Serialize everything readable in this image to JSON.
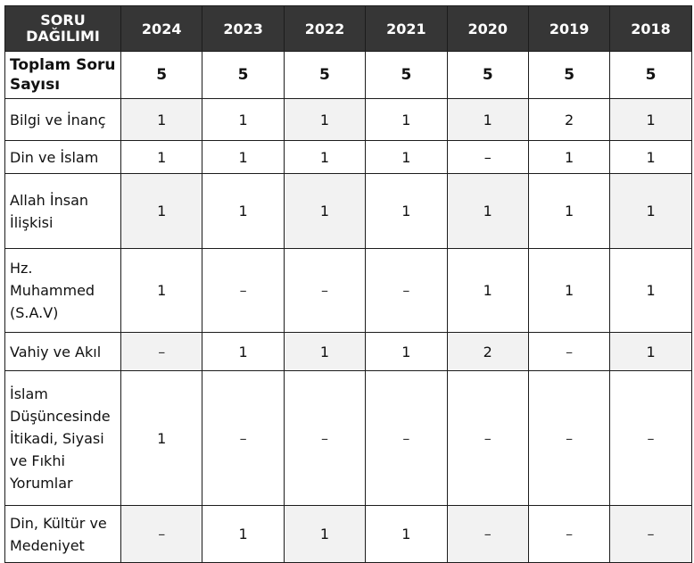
{
  "header": {
    "topic": "SORU DAĞILIMI",
    "years": [
      "2024",
      "2023",
      "2022",
      "2021",
      "2020",
      "2019",
      "2018"
    ]
  },
  "total": {
    "label": "Toplam Soru Sayısı",
    "values": [
      "5",
      "5",
      "5",
      "5",
      "5",
      "5",
      "5"
    ]
  },
  "rows": [
    {
      "topic": "Bilgi ve İnanç",
      "values": [
        "1",
        "1",
        "1",
        "1",
        "1",
        "2",
        "1"
      ]
    },
    {
      "topic": "Din ve İslam",
      "values": [
        "1",
        "1",
        "1",
        "1",
        "–",
        "1",
        "1"
      ]
    },
    {
      "topic": "Allah İnsan İlişkisi",
      "values": [
        "1",
        "1",
        "1",
        "1",
        "1",
        "1",
        "1"
      ]
    },
    {
      "topic": "Hz. Muhammed (S.A.V)",
      "values": [
        "1",
        "–",
        "–",
        "–",
        "1",
        "1",
        "1"
      ]
    },
    {
      "topic": "Vahiy ve Akıl",
      "values": [
        "–",
        "1",
        "1",
        "1",
        "2",
        "–",
        "1"
      ]
    },
    {
      "topic": "İslam Düşüncesinde İtikadi, Siyasi ve Fıkhi Yorumlar",
      "values": [
        "1",
        "–",
        "–",
        "–",
        "–",
        "–",
        "–"
      ]
    },
    {
      "topic": "Din, Kültür ve Medeniyet",
      "values": [
        "–",
        "1",
        "1",
        "1",
        "–",
        "–",
        "–"
      ]
    }
  ]
}
